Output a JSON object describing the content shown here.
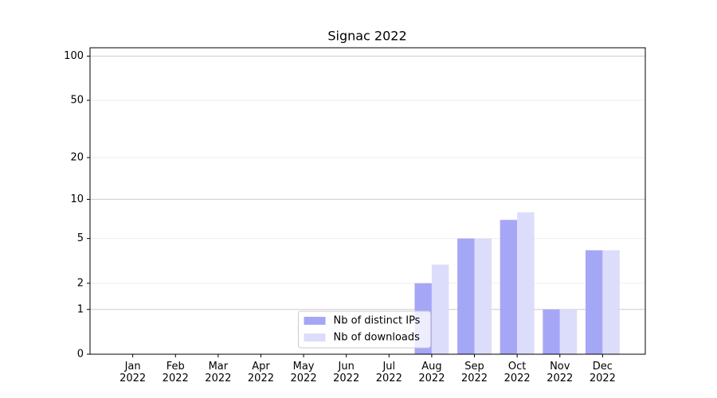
{
  "chart_data": {
    "type": "bar",
    "title": "Signac 2022",
    "categories": [
      "Jan 2022",
      "Feb 2022",
      "Mar 2022",
      "Apr 2022",
      "May 2022",
      "Jun 2022",
      "Jul 2022",
      "Aug 2022",
      "Sep 2022",
      "Oct 2022",
      "Nov 2022",
      "Dec 2022"
    ],
    "series": [
      {
        "name": "Nb of distinct IPs",
        "color": "#a6a6f7",
        "values": [
          0,
          0,
          0,
          0,
          0,
          0,
          0,
          2,
          5,
          7,
          1,
          4
        ]
      },
      {
        "name": "Nb of downloads",
        "color": "#dcdcfb",
        "values": [
          0,
          0,
          0,
          0,
          0,
          0,
          0,
          3,
          5,
          8,
          1,
          4
        ]
      }
    ],
    "yscale": "log1p",
    "ylim": [
      0,
      114
    ],
    "yticks": [
      0,
      1,
      2,
      5,
      10,
      20,
      50,
      100
    ],
    "grid": true,
    "legend": "lower center"
  }
}
